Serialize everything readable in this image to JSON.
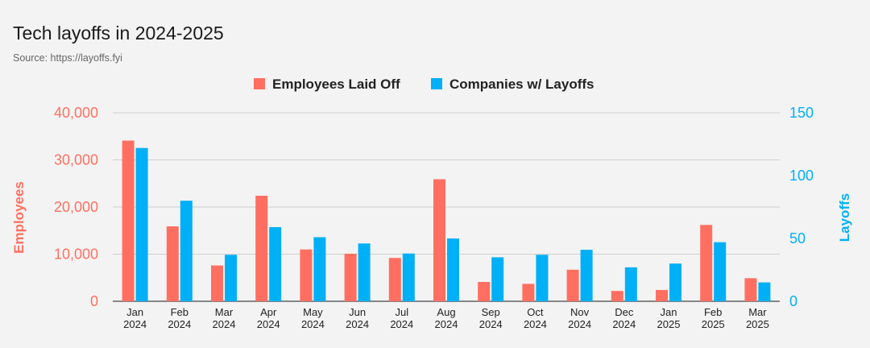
{
  "title": "Tech layoffs in 2024-2025",
  "subtitle": "Source: https://layoffs.fyi",
  "chart_data": {
    "type": "bar",
    "title": "Tech layoffs in 2024-2025",
    "categories": [
      [
        "Jan",
        "2024"
      ],
      [
        "Feb",
        "2024"
      ],
      [
        "Mar",
        "2024"
      ],
      [
        "Apr",
        "2024"
      ],
      [
        "May",
        "2024"
      ],
      [
        "Jun",
        "2024"
      ],
      [
        "Jul",
        "2024"
      ],
      [
        "Aug",
        "2024"
      ],
      [
        "Sep",
        "2024"
      ],
      [
        "Oct",
        "2024"
      ],
      [
        "Nov",
        "2024"
      ],
      [
        "Dec",
        "2024"
      ],
      [
        "Jan",
        "2025"
      ],
      [
        "Feb",
        "2025"
      ],
      [
        "Mar",
        "2025"
      ]
    ],
    "series": [
      {
        "name": "Employees Laid Off",
        "axis": "left",
        "color": "#ff6f61",
        "values": [
          34100,
          15900,
          7600,
          22400,
          11000,
          10100,
          9200,
          25900,
          4100,
          3700,
          6700,
          2200,
          2400,
          16200,
          4900
        ]
      },
      {
        "name": "Companies w/ Layoffs",
        "axis": "right",
        "color": "#00b0f6",
        "values": [
          122,
          80,
          37,
          59,
          51,
          46,
          38,
          50,
          35,
          37,
          41,
          27,
          30,
          47,
          15
        ]
      }
    ],
    "ylabel_left": "Employees",
    "ylabel_right": "Layoffs",
    "ylim_left": [
      0,
      40000
    ],
    "ylim_right": [
      0,
      150
    ],
    "yticks_left": [
      "0",
      "10,000",
      "20,000",
      "30,000",
      "40,000"
    ],
    "yticks_right": [
      "0",
      "50",
      "100",
      "150"
    ],
    "left_axis_color": "#ff6f61",
    "right_axis_color": "#00b0f6",
    "grid": true,
    "legend_position": "top-center"
  }
}
